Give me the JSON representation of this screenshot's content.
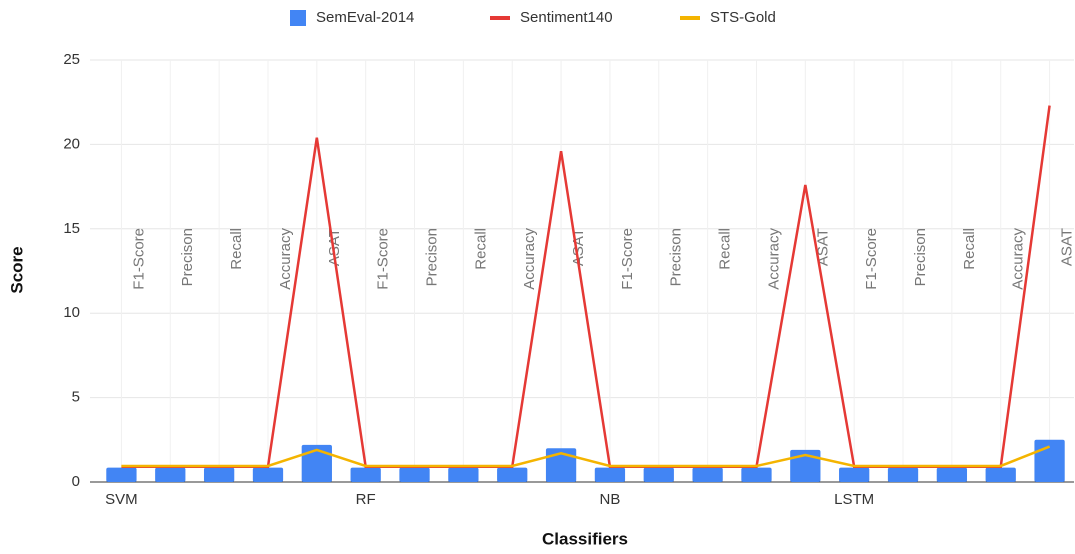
{
  "chart_data": {
    "type": "bar_line",
    "y_label": "Score",
    "x_label": "Classifiers",
    "categories": [
      "F1-Score",
      "Precison",
      "Recall",
      "Accuracy",
      "ASAT",
      "F1-Score",
      "Precison",
      "Recall",
      "Accuracy",
      "ASAT",
      "F1-Score",
      "Precison",
      "Recall",
      "Accuracy",
      "ASAT",
      "F1-Score",
      "Precison",
      "Recall",
      "Accuracy",
      "ASAT"
    ],
    "group_labels": [
      "SVM",
      null,
      null,
      null,
      null,
      "RF",
      null,
      null,
      null,
      null,
      "NB",
      null,
      null,
      null,
      null,
      "LSTM",
      null,
      null,
      null,
      null
    ],
    "series": [
      {
        "name": "SemEval-2014",
        "color": "#4285f4",
        "kind": "bar",
        "values": [
          0.85,
          0.85,
          0.85,
          0.85,
          2.2,
          0.85,
          0.85,
          0.85,
          0.85,
          2.0,
          0.85,
          0.85,
          0.85,
          0.85,
          1.9,
          0.85,
          0.85,
          0.85,
          0.85,
          2.5
        ]
      },
      {
        "name": "Sentiment140",
        "color": "#e53935",
        "kind": "line",
        "values": [
          0.9,
          0.9,
          0.9,
          0.9,
          20.4,
          0.9,
          0.9,
          0.9,
          0.9,
          19.6,
          0.9,
          0.9,
          0.9,
          0.9,
          17.6,
          0.9,
          0.9,
          0.9,
          0.9,
          22.3
        ]
      },
      {
        "name": "STS-Gold",
        "color": "#f4b400",
        "kind": "line",
        "values": [
          0.95,
          0.95,
          0.95,
          0.95,
          1.9,
          0.95,
          0.95,
          0.95,
          0.95,
          1.7,
          0.95,
          0.95,
          0.95,
          0.95,
          1.6,
          0.95,
          0.95,
          0.95,
          0.95,
          2.1
        ]
      }
    ],
    "ylim": [
      0,
      25
    ],
    "yticks": [
      0,
      5,
      10,
      15,
      20,
      25
    ],
    "grid": true
  }
}
